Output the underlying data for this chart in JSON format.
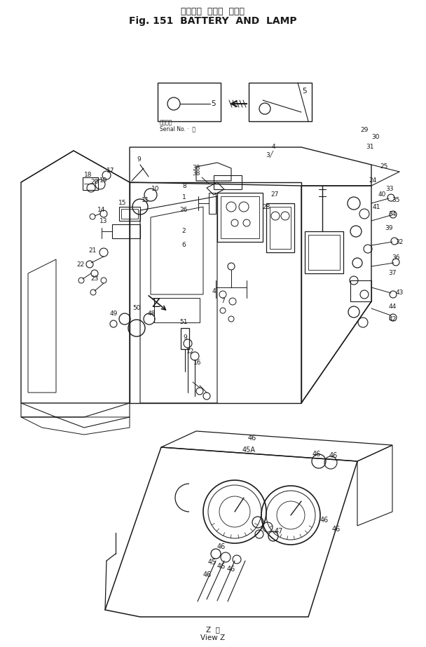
{
  "title_jp": "バッテリ  および  ランプ",
  "title_en": "Fig. 151  BATTERY  AND  LAMP",
  "bottom_jp": "Z  矢",
  "bottom_en": "View Z",
  "serial_jp": "適用番号",
  "serial_en": "Serial No. ·  ～",
  "bg": "#ffffff",
  "lc": "#1a1a1a",
  "fig_w": 6.08,
  "fig_h": 9.23,
  "dpi": 100
}
